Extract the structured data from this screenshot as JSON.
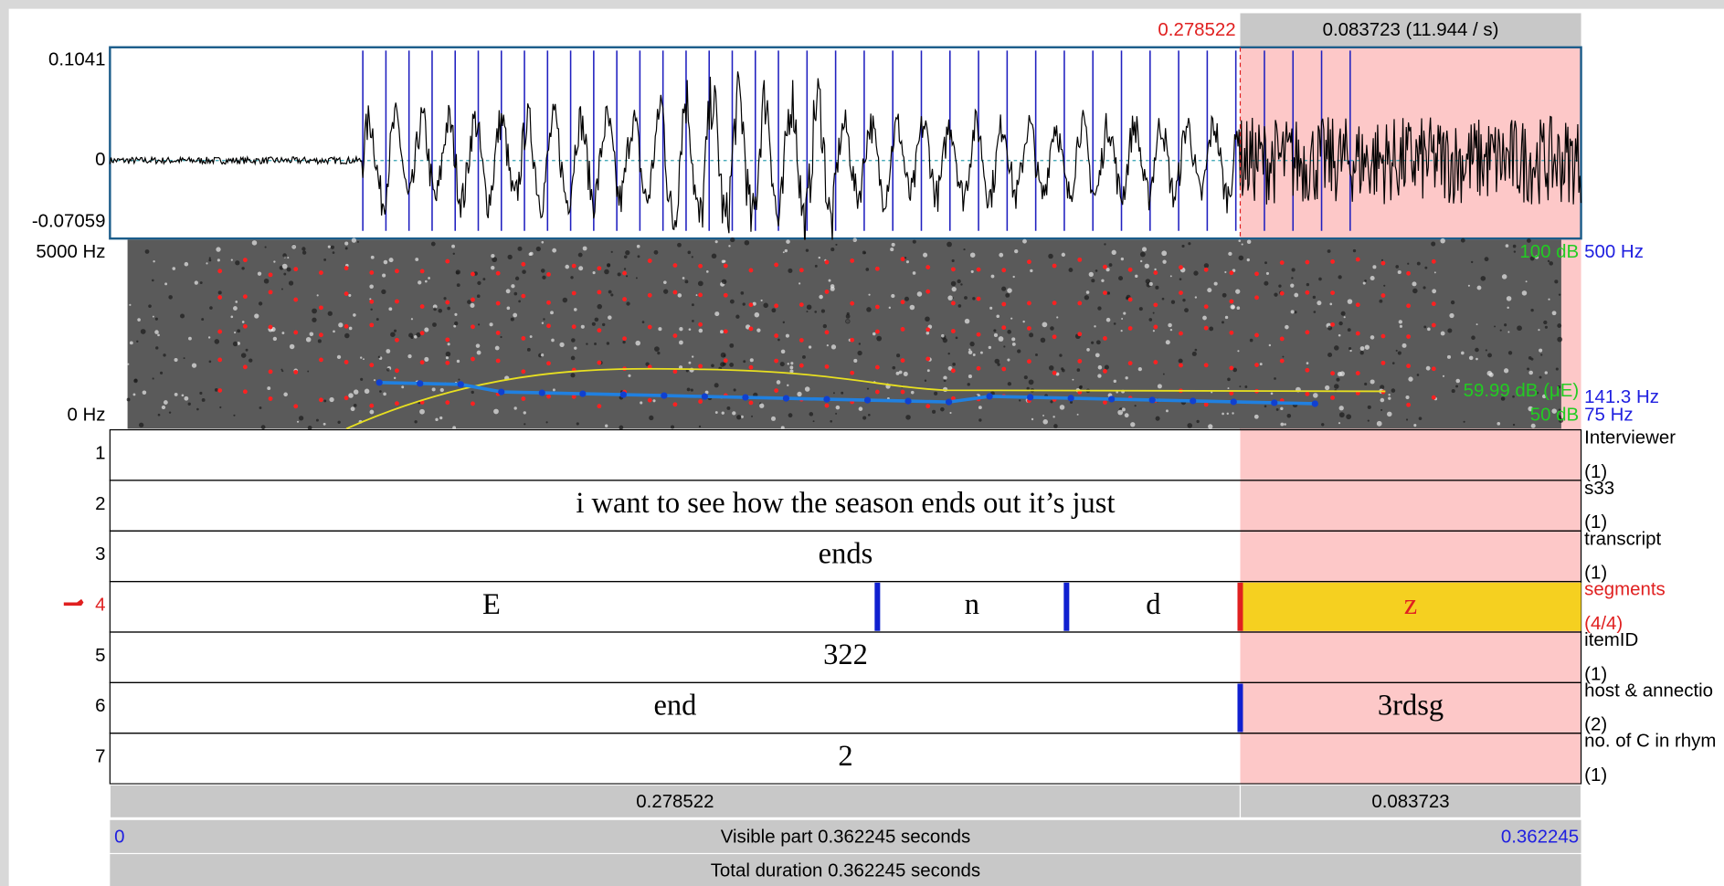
{
  "header": {
    "selection_start": "0.278522",
    "selection_length": "0.083723 (11.944 / s)"
  },
  "waveform": {
    "max": "0.1041",
    "zero": "0",
    "min": "-0.07059"
  },
  "spectrogram": {
    "top_freq": "5000 Hz",
    "bottom_freq": "0 Hz",
    "intensity_top": "100 dB",
    "pitch_top": "500 Hz",
    "intensity_value": "59.99 dB (μE)",
    "pitch_value": "141.3 Hz",
    "intensity_bottom": "50 dB",
    "pitch_bottom": "75 Hz"
  },
  "tiers": [
    {
      "number": "1",
      "name": "Interviewer",
      "count": "(1)",
      "intervals": []
    },
    {
      "number": "2",
      "name": "s33",
      "count": "(1)",
      "intervals": [
        "i want to see how the season ends out it’s just"
      ]
    },
    {
      "number": "3",
      "name": "transcript",
      "count": "(1)",
      "intervals": [
        "ends"
      ]
    },
    {
      "number": "4",
      "name": "segments",
      "count": "(4/4)",
      "intervals": [
        "E",
        "n",
        "d",
        "z"
      ]
    },
    {
      "number": "5",
      "name": "itemID",
      "count": "(1)",
      "intervals": [
        "322"
      ]
    },
    {
      "number": "6",
      "name": "host & annectio",
      "count": "(2)",
      "intervals": [
        "end",
        "3rdsg"
      ]
    },
    {
      "number": "7",
      "name": "no. of C in rhym",
      "count": "(1)",
      "intervals": [
        "2"
      ]
    }
  ],
  "footer": {
    "left_duration": "0.278522",
    "right_duration": "0.083723",
    "visible_start": "0",
    "visible_part": "Visible part 0.362245 seconds",
    "visible_end": "0.362245",
    "total_duration": "Total duration 0.362245 seconds"
  }
}
